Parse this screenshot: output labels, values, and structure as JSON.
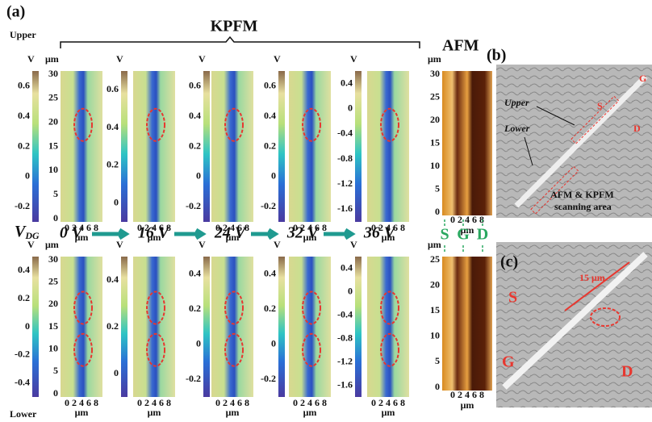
{
  "header": {
    "label": "(a)",
    "kpfm": "KPFM",
    "afm": "AFM",
    "upper": "Upper",
    "lower": "Lower"
  },
  "top_row": {
    "y_axis": {
      "unit": "μm",
      "ticks": [
        "30",
        "25",
        "20",
        "15",
        "10",
        "5",
        "0"
      ]
    },
    "panels": [
      {
        "unit": "V",
        "ticks": [
          "0.6",
          "0.4",
          "0.2",
          "0",
          "-0.2"
        ],
        "xticks": "0 2 4 6 8",
        "xunit": "μm"
      },
      {
        "unit": "V",
        "ticks": [
          "0.6",
          "0.4",
          "0.2",
          "0"
        ],
        "xticks": "0 2 4 6 8",
        "xunit": "μm"
      },
      {
        "unit": "V",
        "ticks": [
          "0.6",
          "0.4",
          "0.2",
          "0",
          "-0.2"
        ],
        "xticks": "0 2 4 6 8",
        "xunit": "μm"
      },
      {
        "unit": "V",
        "ticks": [
          "0.6",
          "0.4",
          "0.2",
          "0",
          "-0.2"
        ],
        "xticks": "0 2 4 6 8",
        "xunit": "μm"
      },
      {
        "unit": "V",
        "ticks": [
          "0.4",
          "0",
          "-0.4",
          "-0.8",
          "-1.2",
          "-1.6"
        ],
        "xticks": "0 2 4 6 8",
        "xunit": "μm"
      }
    ],
    "afm": {
      "unit": "μm",
      "ticks": [
        "30",
        "25",
        "20",
        "15",
        "10",
        "5",
        "0"
      ],
      "xticks": "0 2 4 6 8",
      "xunit": "μm"
    }
  },
  "bottom_row": {
    "y_axis": {
      "unit": "μm",
      "ticks": [
        "30",
        "25",
        "20",
        "15",
        "10",
        "5",
        "0"
      ]
    },
    "panels": [
      {
        "unit": "V",
        "ticks": [
          "0.4",
          "0.2",
          "0",
          "-0.2",
          "-0.4"
        ],
        "xticks": "0 2 4 6 8",
        "xunit": "μm"
      },
      {
        "unit": "V",
        "ticks": [
          "0.4",
          "0.2",
          "0"
        ],
        "xticks": "0 2 4 6 8",
        "xunit": "μm"
      },
      {
        "unit": "V",
        "ticks": [
          "0.4",
          "0.2",
          "0",
          "-0.2"
        ],
        "xticks": "0 2 4 6 8",
        "xunit": "μm"
      },
      {
        "unit": "V",
        "ticks": [
          "0.4",
          "0.2",
          "0",
          "-0.2"
        ],
        "xticks": "0 2 4 6 8",
        "xunit": "μm"
      },
      {
        "unit": "V",
        "ticks": [
          "0.4",
          "0",
          "-0.4",
          "-0.8",
          "-1.2",
          "-1.6"
        ],
        "xticks": "0 2 4 6 8",
        "xunit": "μm"
      }
    ],
    "afm": {
      "unit": "μm",
      "ticks": [
        "25",
        "20",
        "15",
        "10",
        "5",
        "0"
      ],
      "xticks": "0 2 4 6 8",
      "xunit": "μm"
    }
  },
  "gate": {
    "label": "V",
    "subscript": "DG",
    "steps": [
      "0 V",
      "16 V",
      "24 V",
      "32 V",
      "36 V"
    ],
    "electrodes": [
      "S",
      "G",
      "D"
    ]
  },
  "panel_b": {
    "label": "(b)",
    "upper": "Upper",
    "lower": "Lower",
    "s": "S",
    "g": "G",
    "d": "D",
    "area_line1": "AFM & KPFM",
    "area_line2": "scanning area"
  },
  "panel_c": {
    "label": "(c)",
    "scale": "15 μm",
    "s": "S",
    "g": "G",
    "d": "D"
  }
}
